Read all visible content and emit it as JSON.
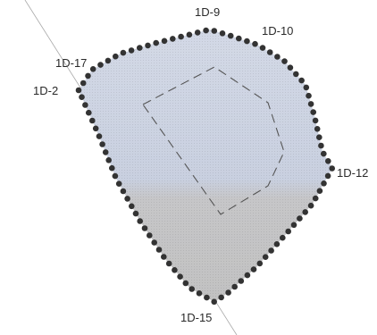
{
  "labels": {
    "top": "1D-9",
    "top_right": "1D-10",
    "upper_left": "1D-17",
    "left": "1D-2",
    "right": "1D-12",
    "bottom": "1D-15"
  },
  "colors": {
    "field_upper": "#c9d0e0",
    "field_lower": "#c4c4c4",
    "field_mid": "#cfd2da",
    "survey_point": "#333333",
    "inner_boundary": "#555555",
    "reference_line": "#9a9a9a"
  },
  "icons": {
    "survey_point": "filled-circle",
    "inner_boundary": "dashed-polygon"
  }
}
